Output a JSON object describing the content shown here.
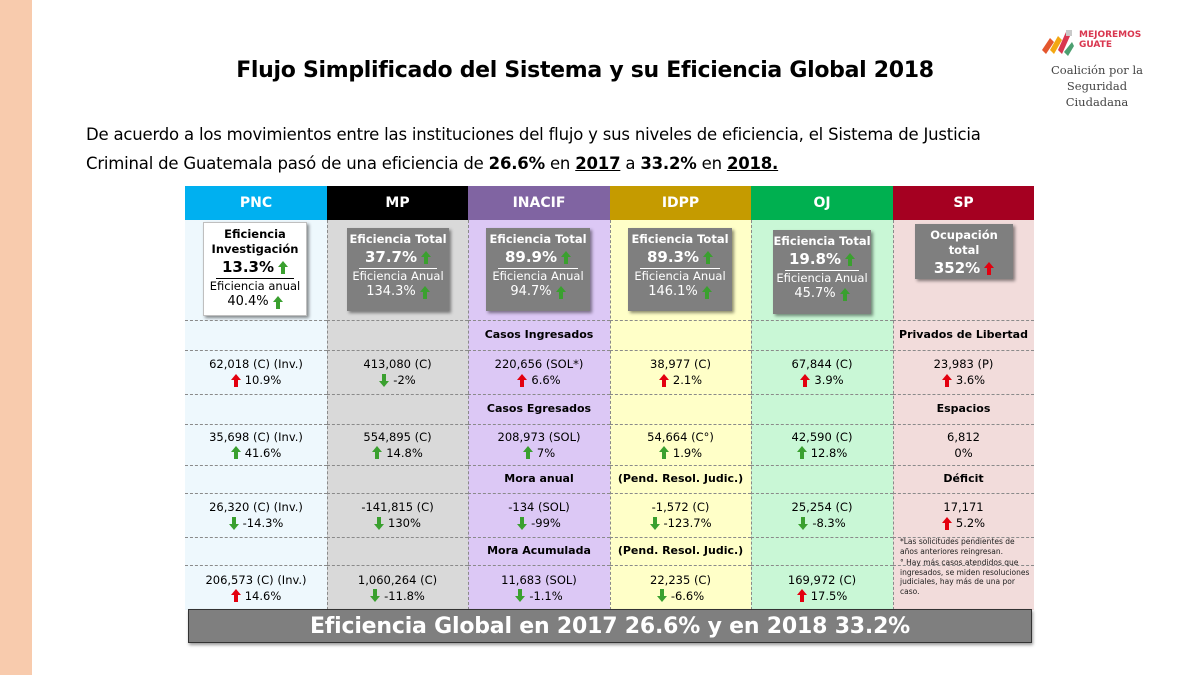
{
  "title": "Flujo Simplificado del Sistema y su Eficiencia Global 2018",
  "logo": {
    "brand_line1": "MEJOREMOS",
    "brand_line2": "GUATE",
    "sub_line1": "Coalición por la",
    "sub_line2": "Seguridad Ciudadana"
  },
  "intro": {
    "part1": "De acuerdo a los movimientos entre las instituciones del flujo y sus niveles de eficiencia, el Sistema de Justicia Criminal de Guatemala pasó de una eficiencia de ",
    "val_2017": "26.6%",
    "part2": " en ",
    "year_2017": "2017",
    "part3": " a ",
    "val_2018": "33.2%",
    "part4": " en ",
    "year_2018": "2018."
  },
  "colors": {
    "pnc": "#00b0f0",
    "mp": "#000000",
    "inacif": "#8064a2",
    "idpp": "#c59b00",
    "oj": "#00b050",
    "sp": "#a50021",
    "pnc_bg": "#eef8fd",
    "mp_bg": "#d9d9d9",
    "inacif_bg": "#dcc8f5",
    "idpp_bg": "#ffffc8",
    "oj_bg": "#c9f7d6",
    "sp_bg": "#f2dcdb",
    "arrow_up": "#e3000f",
    "arrow_down": "#3aa02f"
  },
  "columns": [
    {
      "name": "PNC",
      "card": {
        "label": "Eficiencia Investigación",
        "value": "13.3%",
        "value_arrow": "up-green",
        "sub_label": "Eficiencia anual",
        "sub_value": "40.4%",
        "sub_arrow": "up-green"
      },
      "rows": [
        {
          "value": "62,018 (C) (Inv.)",
          "arrow": "up-red",
          "pct": "10.9%"
        },
        {
          "value": "35,698 (C) (Inv.)",
          "arrow": "up-green",
          "pct": "41.6%"
        },
        {
          "value": "26,320 (C) (Inv.)",
          "arrow": "down-green",
          "pct": "-14.3%"
        },
        {
          "value": "206,573 (C) (Inv.)",
          "arrow": "up-red",
          "pct": "14.6%"
        }
      ]
    },
    {
      "name": "MP",
      "card": {
        "label": "Eficiencia Total",
        "value": "37.7%",
        "value_arrow": "up-green",
        "sub_label": "Eficiencia Anual",
        "sub_value": "134.3%",
        "sub_arrow": "up-green"
      },
      "rows": [
        {
          "value": "413,080 (C)",
          "arrow": "down-green",
          "pct": "-2%"
        },
        {
          "value": "554,895 (C)",
          "arrow": "up-green",
          "pct": "14.8%"
        },
        {
          "value": "-141,815 (C)",
          "arrow": "down-green",
          "pct": "130%"
        },
        {
          "value": "1,060,264 (C)",
          "arrow": "down-green",
          "pct": "-11.8%"
        }
      ]
    },
    {
      "name": "INACIF",
      "card": {
        "label": "Eficiencia Total",
        "value": "89.9%",
        "value_arrow": "up-green",
        "sub_label": "Eficiencia Anual",
        "sub_value": "94.7%",
        "sub_arrow": "up-green"
      },
      "rows": [
        {
          "value": "220,656 (SOL*)",
          "arrow": "up-red",
          "pct": "6.6%"
        },
        {
          "value": "208,973 (SOL)",
          "arrow": "up-green",
          "pct": "7%"
        },
        {
          "value": "-134 (SOL)",
          "arrow": "down-green",
          "pct": "-99%"
        },
        {
          "value": "11,683 (SOL)",
          "arrow": "down-green",
          "pct": "-1.1%"
        }
      ]
    },
    {
      "name": "IDPP",
      "card": {
        "label": "Eficiencia Total",
        "value": "89.3%",
        "value_arrow": "up-green",
        "sub_label": "Eficiencia Anual",
        "sub_value": "146.1%",
        "sub_arrow": "up-green"
      },
      "rows": [
        {
          "value": "38,977 (C)",
          "arrow": "up-red",
          "pct": "2.1%"
        },
        {
          "value": "54,664 (C°)",
          "arrow": "up-green",
          "pct": "1.9%"
        },
        {
          "value": "-1,572 (C)",
          "arrow": "down-green",
          "pct": "-123.7%"
        },
        {
          "value": "22,235 (C)",
          "arrow": "down-green",
          "pct": "-6.6%"
        }
      ]
    },
    {
      "name": "OJ",
      "card": {
        "label": "Eficiencia Total",
        "value": "19.8%",
        "value_arrow": "up-green",
        "sub_label": "Eficiencia Anual",
        "sub_value": "45.7%",
        "sub_arrow": "up-green"
      },
      "rows": [
        {
          "value": "67,844 (C)",
          "arrow": "up-red",
          "pct": "3.9%"
        },
        {
          "value": "42,590 (C)",
          "arrow": "up-green",
          "pct": "12.8%"
        },
        {
          "value": "25,254 (C)",
          "arrow": "down-green",
          "pct": "-8.3%"
        },
        {
          "value": "169,972 (C)",
          "arrow": "up-red",
          "pct": "17.5%"
        }
      ]
    },
    {
      "name": "SP",
      "card": {
        "label": "Ocupación total",
        "value": "352%",
        "value_arrow": "up-red"
      },
      "rows": [
        {
          "value": "23,983 (P)",
          "arrow": "up-red",
          "pct": "3.6%"
        },
        {
          "value": "6,812",
          "arrow": "",
          "pct": "0%"
        },
        {
          "value": "17,171",
          "arrow": "up-red",
          "pct": "5.2%"
        }
      ]
    }
  ],
  "row_labels": {
    "inacif": [
      "Casos Ingresados",
      "Casos Egresados",
      "Mora anual",
      "Mora Acumulada"
    ],
    "idpp": [
      "",
      "",
      "(Pend. Resol. Judic.)",
      "(Pend. Resol. Judic.)"
    ],
    "sp": [
      "Privados de Libertad",
      "Espacios",
      "Déficit"
    ]
  },
  "footnotes": {
    "note1": "*Las solicitudes pendientes de años anteriores reingresan.",
    "note2": "°  Hay más casos atendidos que ingresados, se miden resoluciones judiciales, hay más de una por caso."
  },
  "banner": "Eficiencia Global en 2017 26.6% y en 2018 33.2%"
}
